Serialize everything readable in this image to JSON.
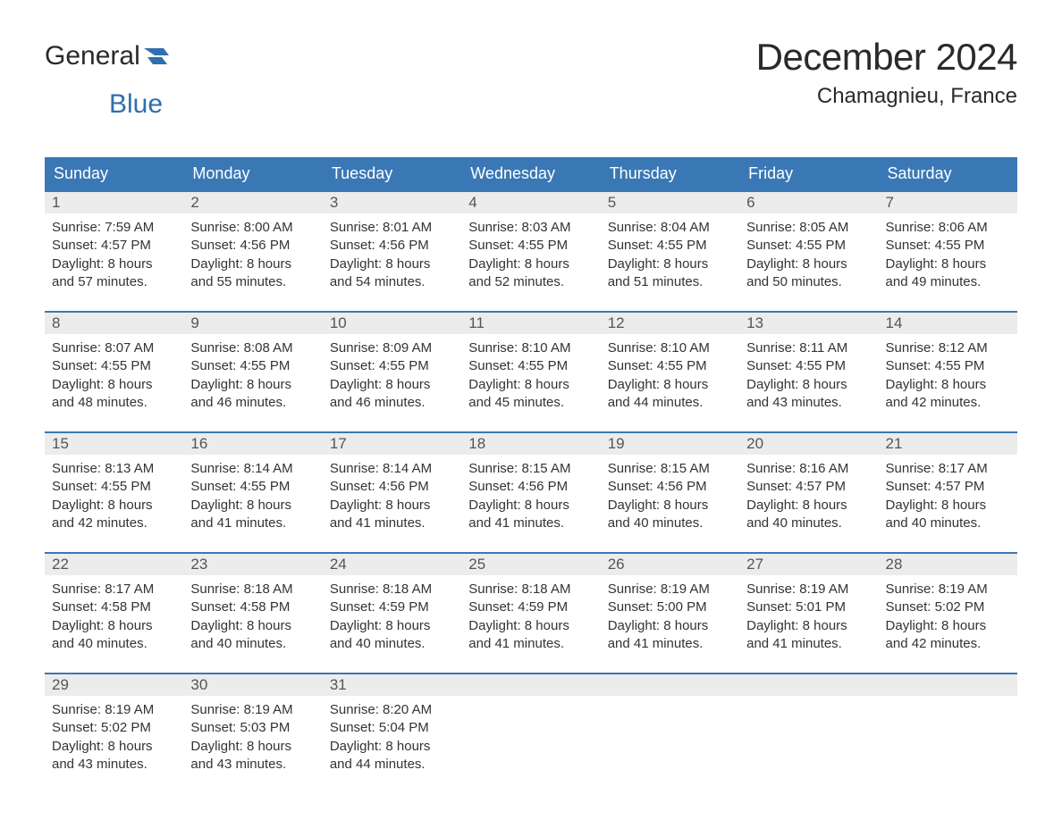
{
  "logo": {
    "text1": "General",
    "text2": "Blue"
  },
  "title": "December 2024",
  "location": "Chamagnieu, France",
  "colors": {
    "header_bg": "#3a78b5",
    "header_text": "#ffffff",
    "daynum_bg": "#ececec",
    "daynum_text": "#555555",
    "body_text": "#333333",
    "accent": "#2f6eb0"
  },
  "day_labels": [
    "Sunday",
    "Monday",
    "Tuesday",
    "Wednesday",
    "Thursday",
    "Friday",
    "Saturday"
  ],
  "weeks": [
    [
      {
        "n": "1",
        "sunrise": "7:59 AM",
        "sunset": "4:57 PM",
        "daylight": "8 hours and 57 minutes."
      },
      {
        "n": "2",
        "sunrise": "8:00 AM",
        "sunset": "4:56 PM",
        "daylight": "8 hours and 55 minutes."
      },
      {
        "n": "3",
        "sunrise": "8:01 AM",
        "sunset": "4:56 PM",
        "daylight": "8 hours and 54 minutes."
      },
      {
        "n": "4",
        "sunrise": "8:03 AM",
        "sunset": "4:55 PM",
        "daylight": "8 hours and 52 minutes."
      },
      {
        "n": "5",
        "sunrise": "8:04 AM",
        "sunset": "4:55 PM",
        "daylight": "8 hours and 51 minutes."
      },
      {
        "n": "6",
        "sunrise": "8:05 AM",
        "sunset": "4:55 PM",
        "daylight": "8 hours and 50 minutes."
      },
      {
        "n": "7",
        "sunrise": "8:06 AM",
        "sunset": "4:55 PM",
        "daylight": "8 hours and 49 minutes."
      }
    ],
    [
      {
        "n": "8",
        "sunrise": "8:07 AM",
        "sunset": "4:55 PM",
        "daylight": "8 hours and 48 minutes."
      },
      {
        "n": "9",
        "sunrise": "8:08 AM",
        "sunset": "4:55 PM",
        "daylight": "8 hours and 46 minutes."
      },
      {
        "n": "10",
        "sunrise": "8:09 AM",
        "sunset": "4:55 PM",
        "daylight": "8 hours and 46 minutes."
      },
      {
        "n": "11",
        "sunrise": "8:10 AM",
        "sunset": "4:55 PM",
        "daylight": "8 hours and 45 minutes."
      },
      {
        "n": "12",
        "sunrise": "8:10 AM",
        "sunset": "4:55 PM",
        "daylight": "8 hours and 44 minutes."
      },
      {
        "n": "13",
        "sunrise": "8:11 AM",
        "sunset": "4:55 PM",
        "daylight": "8 hours and 43 minutes."
      },
      {
        "n": "14",
        "sunrise": "8:12 AM",
        "sunset": "4:55 PM",
        "daylight": "8 hours and 42 minutes."
      }
    ],
    [
      {
        "n": "15",
        "sunrise": "8:13 AM",
        "sunset": "4:55 PM",
        "daylight": "8 hours and 42 minutes."
      },
      {
        "n": "16",
        "sunrise": "8:14 AM",
        "sunset": "4:55 PM",
        "daylight": "8 hours and 41 minutes."
      },
      {
        "n": "17",
        "sunrise": "8:14 AM",
        "sunset": "4:56 PM",
        "daylight": "8 hours and 41 minutes."
      },
      {
        "n": "18",
        "sunrise": "8:15 AM",
        "sunset": "4:56 PM",
        "daylight": "8 hours and 41 minutes."
      },
      {
        "n": "19",
        "sunrise": "8:15 AM",
        "sunset": "4:56 PM",
        "daylight": "8 hours and 40 minutes."
      },
      {
        "n": "20",
        "sunrise": "8:16 AM",
        "sunset": "4:57 PM",
        "daylight": "8 hours and 40 minutes."
      },
      {
        "n": "21",
        "sunrise": "8:17 AM",
        "sunset": "4:57 PM",
        "daylight": "8 hours and 40 minutes."
      }
    ],
    [
      {
        "n": "22",
        "sunrise": "8:17 AM",
        "sunset": "4:58 PM",
        "daylight": "8 hours and 40 minutes."
      },
      {
        "n": "23",
        "sunrise": "8:18 AM",
        "sunset": "4:58 PM",
        "daylight": "8 hours and 40 minutes."
      },
      {
        "n": "24",
        "sunrise": "8:18 AM",
        "sunset": "4:59 PM",
        "daylight": "8 hours and 40 minutes."
      },
      {
        "n": "25",
        "sunrise": "8:18 AM",
        "sunset": "4:59 PM",
        "daylight": "8 hours and 41 minutes."
      },
      {
        "n": "26",
        "sunrise": "8:19 AM",
        "sunset": "5:00 PM",
        "daylight": "8 hours and 41 minutes."
      },
      {
        "n": "27",
        "sunrise": "8:19 AM",
        "sunset": "5:01 PM",
        "daylight": "8 hours and 41 minutes."
      },
      {
        "n": "28",
        "sunrise": "8:19 AM",
        "sunset": "5:02 PM",
        "daylight": "8 hours and 42 minutes."
      }
    ],
    [
      {
        "n": "29",
        "sunrise": "8:19 AM",
        "sunset": "5:02 PM",
        "daylight": "8 hours and 43 minutes."
      },
      {
        "n": "30",
        "sunrise": "8:19 AM",
        "sunset": "5:03 PM",
        "daylight": "8 hours and 43 minutes."
      },
      {
        "n": "31",
        "sunrise": "8:20 AM",
        "sunset": "5:04 PM",
        "daylight": "8 hours and 44 minutes."
      },
      null,
      null,
      null,
      null
    ]
  ],
  "labels": {
    "sunrise": "Sunrise:",
    "sunset": "Sunset:",
    "daylight": "Daylight:"
  }
}
